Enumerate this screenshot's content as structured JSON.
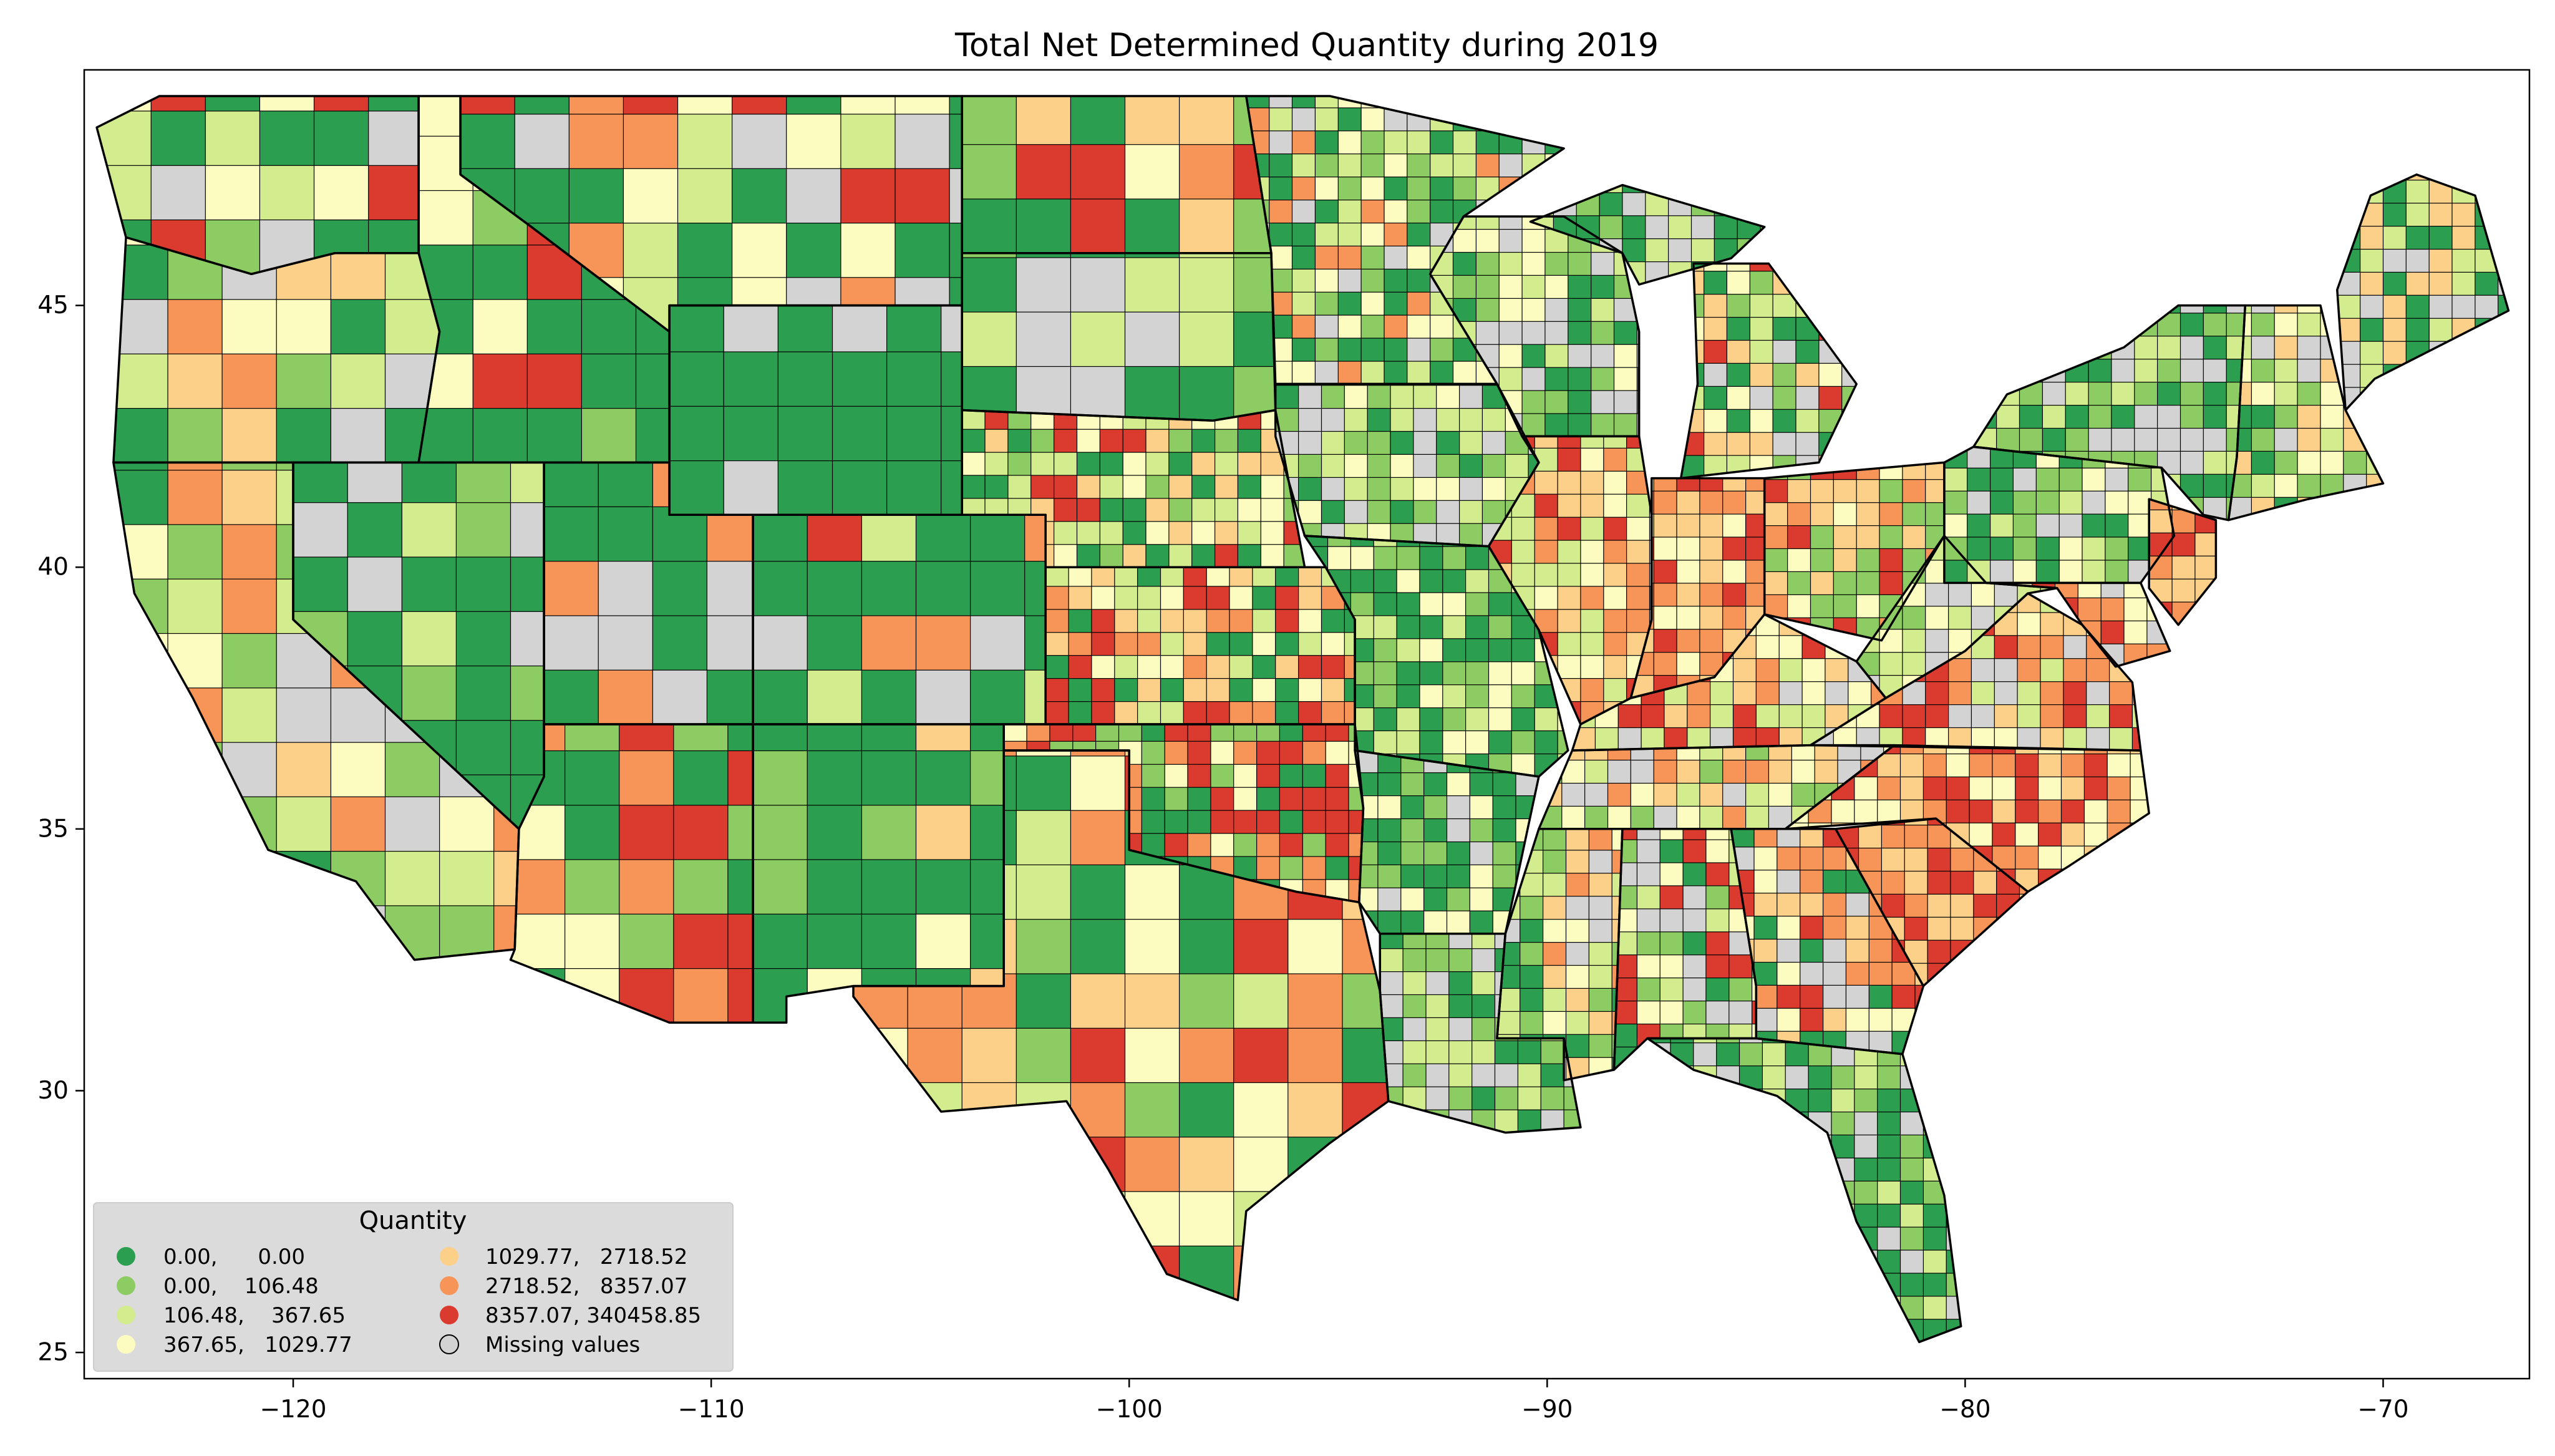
{
  "title": "Total Net Determined Quantity during 2019",
  "x_axis": {
    "ticks": [
      -120,
      -110,
      -100,
      -90,
      -80,
      -70
    ],
    "tick_labels": [
      "−120",
      "−110",
      "−100",
      "−90",
      "−80",
      "−70"
    ],
    "range": [
      -125,
      -66.5
    ]
  },
  "y_axis": {
    "ticks": [
      25,
      30,
      35,
      40,
      45
    ],
    "tick_labels": [
      "25",
      "30",
      "35",
      "40",
      "45"
    ],
    "range": [
      24.5,
      49.5
    ]
  },
  "legend": {
    "title": "Quantity",
    "placement": "lower-left",
    "items": [
      {
        "label": "0.00,      0.00",
        "color": "#2b9e50"
      },
      {
        "label": "0.00,    106.48",
        "color": "#8ccc62"
      },
      {
        "label": "106.48,    367.65",
        "color": "#d2ec8e"
      },
      {
        "label": "367.65,   1029.77",
        "color": "#fdfcc0"
      },
      {
        "label": "1029.77,   2718.52",
        "color": "#fdd08a"
      },
      {
        "label": "2718.52,   8357.07",
        "color": "#f79457"
      },
      {
        "label": "8357.07, 340458.85",
        "color": "#db3a2e"
      },
      {
        "label": "Missing values",
        "color": "#d3d3d3"
      }
    ]
  },
  "colors": {
    "background": "#ffffff",
    "missing": "#d3d3d3",
    "county_border": "#000000",
    "legend_bg": "#d9d9d9"
  }
}
